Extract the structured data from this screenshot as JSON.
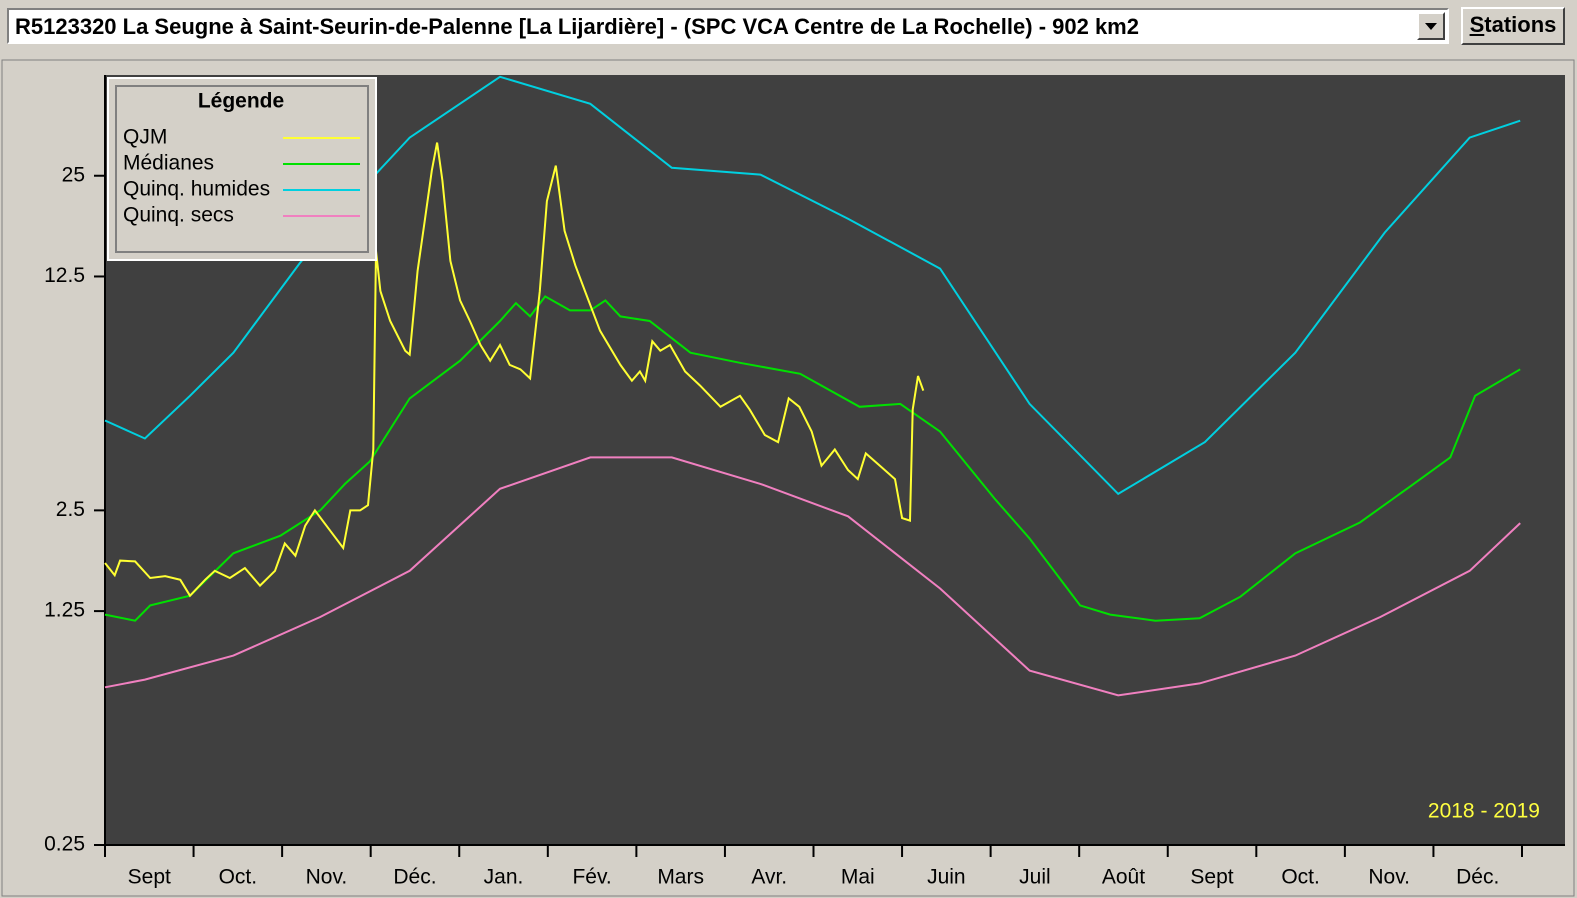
{
  "header": {
    "station": "R5123320 La Seugne à Saint-Seurin-de-Palenne [La Lijardière] - (SPC VCA Centre de La Rochelle) - 902 km2",
    "button": "Stations"
  },
  "chart_data": {
    "type": "line",
    "log_scale": true,
    "categories": [
      "Sept",
      "Oct.",
      "Nov.",
      "Déc.",
      "Jan.",
      "Fév.",
      "Mars",
      "Avr.",
      "Mai",
      "Juin",
      "Juil",
      "Août",
      "Sept",
      "Oct.",
      "Nov.",
      "Déc."
    ],
    "xlim": [
      0,
      16
    ],
    "ylim": [
      0.25,
      50
    ],
    "yticks": [
      0.25,
      1.25,
      2.5,
      12.5,
      25
    ],
    "legend": {
      "title": "Légende",
      "position": "upper left"
    },
    "annotation": "2018 - 2019",
    "annotation_color": "#ffff40",
    "background": "#404040",
    "series": [
      {
        "name": "QJM",
        "color": "#ffff33",
        "x": [
          0,
          0.11,
          0.17,
          0.34,
          0.51,
          0.68,
          0.85,
          0.96,
          1.13,
          1.24,
          1.41,
          1.58,
          1.75,
          1.92,
          2.03,
          2.15,
          2.26,
          2.37,
          2.54,
          2.69,
          2.77,
          2.88,
          2.97,
          3.03,
          3.06,
          3.11,
          3.22,
          3.39,
          3.44,
          3.53,
          3.61,
          3.69,
          3.75,
          3.81,
          3.9,
          4.01,
          4.12,
          4.24,
          4.35,
          4.46,
          4.57,
          4.69,
          4.8,
          4.91,
          4.99,
          5.09,
          5.19,
          5.31,
          5.42,
          5.59,
          5.82,
          5.95,
          6.04,
          6.1,
          6.18,
          6.27,
          6.38,
          6.55,
          6.72,
          6.95,
          7.17,
          7.28,
          7.45,
          7.6,
          7.72,
          7.84,
          7.98,
          8.09,
          8.24,
          8.39,
          8.5,
          8.59,
          8.75,
          8.92,
          9.0,
          9.09,
          9.12,
          9.18,
          9.24
        ],
        "values": [
          1.74,
          1.6,
          1.77,
          1.76,
          1.57,
          1.59,
          1.55,
          1.39,
          1.55,
          1.65,
          1.57,
          1.68,
          1.49,
          1.65,
          1.99,
          1.83,
          2.25,
          2.5,
          2.18,
          1.93,
          2.5,
          2.5,
          2.59,
          3.8,
          14.9,
          11.3,
          9.2,
          7.5,
          7.3,
          13.0,
          18.3,
          25.9,
          31.4,
          24.2,
          13.9,
          10.6,
          9.2,
          7.8,
          7.0,
          7.8,
          6.8,
          6.6,
          6.2,
          11.3,
          21.0,
          26.8,
          17.1,
          13.5,
          11.3,
          8.6,
          6.8,
          6.1,
          6.5,
          6.1,
          8.0,
          7.5,
          7.8,
          6.5,
          5.9,
          5.1,
          5.5,
          5.0,
          4.2,
          4.0,
          5.4,
          5.1,
          4.3,
          3.4,
          3.8,
          3.3,
          3.1,
          3.7,
          3.4,
          3.1,
          2.37,
          2.33,
          5.0,
          6.3,
          5.7
        ]
      },
      {
        "name": "Médianes",
        "color": "#00e000",
        "x": [
          0,
          0.34,
          0.51,
          0.96,
          1.45,
          1.98,
          2.43,
          2.71,
          2.99,
          3.44,
          4.01,
          4.46,
          4.64,
          4.8,
          4.97,
          5.25,
          5.48,
          5.65,
          5.82,
          6.15,
          6.61,
          7.17,
          7.85,
          8.52,
          8.98,
          9.43,
          10.05,
          10.44,
          11.01,
          11.35,
          11.86,
          12.36,
          12.82,
          13.44,
          14.17,
          14.74,
          15.19,
          15.47,
          15.98
        ],
        "values": [
          1.22,
          1.17,
          1.3,
          1.39,
          1.86,
          2.1,
          2.5,
          3.0,
          3.5,
          5.4,
          7.0,
          9.2,
          10.4,
          9.5,
          10.9,
          9.9,
          9.9,
          10.6,
          9.5,
          9.2,
          7.4,
          6.9,
          6.4,
          5.1,
          5.2,
          4.3,
          2.7,
          2.06,
          1.3,
          1.22,
          1.17,
          1.19,
          1.38,
          1.86,
          2.3,
          2.95,
          3.6,
          5.5,
          6.6
        ]
      },
      {
        "name": "Quinq. humides",
        "color": "#00d0e0",
        "x": [
          0,
          0.45,
          0.96,
          1.45,
          2.2,
          2.99,
          3.44,
          4.46,
          5.48,
          6.4,
          7.4,
          8.39,
          9.43,
          10.44,
          11.44,
          12.42,
          13.44,
          14.45,
          15.41,
          15.98
        ],
        "values": [
          4.64,
          4.1,
          5.5,
          7.4,
          13.7,
          24.2,
          32.5,
          49.4,
          41,
          26.4,
          25.2,
          18.6,
          13.2,
          5.2,
          2.8,
          4.0,
          7.4,
          16.9,
          32.5,
          36.5
        ]
      },
      {
        "name": "Quinq. secs",
        "color": "#f080c0",
        "x": [
          0,
          0.45,
          1.45,
          2.43,
          3.44,
          4.46,
          5.48,
          6.4,
          7.4,
          8.39,
          9.43,
          10.44,
          11.44,
          12.36,
          13.44,
          14.4,
          15.41,
          15.98
        ],
        "values": [
          0.74,
          0.78,
          0.92,
          1.2,
          1.65,
          2.9,
          3.6,
          3.6,
          3.0,
          2.4,
          1.46,
          0.83,
          0.7,
          0.76,
          0.92,
          1.2,
          1.65,
          2.29
        ]
      }
    ]
  }
}
